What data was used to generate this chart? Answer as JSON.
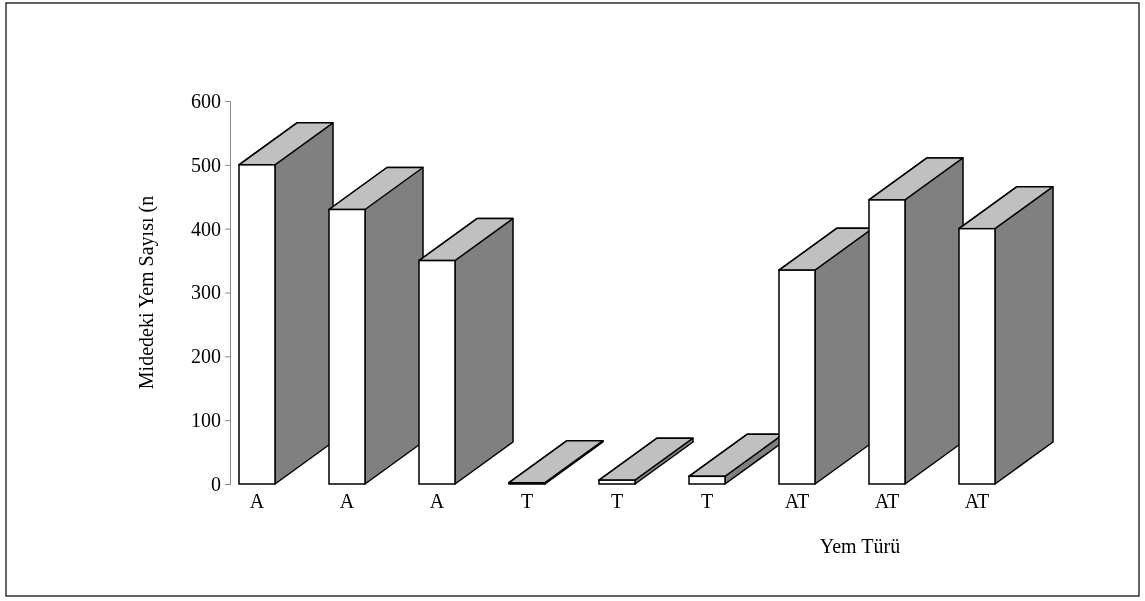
{
  "chart_data": {
    "type": "bar",
    "xlabel": "Yem Türü",
    "ylabel": "Midedeki Yem Sayısı (n",
    "categories": [
      "A",
      "A",
      "A",
      "T",
      "T",
      "T",
      "AT",
      "AT",
      "AT"
    ],
    "values": [
      500,
      430,
      350,
      2,
      6,
      12,
      335,
      445,
      400
    ],
    "color": "#ffffff",
    "ylim": [
      0,
      600
    ],
    "yticks": [
      0,
      100,
      200,
      300,
      400,
      500,
      600
    ],
    "grid": false
  }
}
